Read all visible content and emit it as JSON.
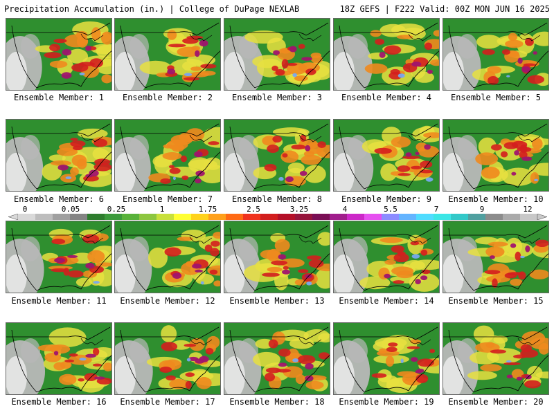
{
  "header": {
    "title": "Precipitation Accumulation (in.) | College of DuPage NEXLAB",
    "run_info": "18Z GEFS | F222 Valid: 00Z MON JUN 16 2025"
  },
  "members": [
    {
      "label": "Ensemble Member: 1"
    },
    {
      "label": "Ensemble Member: 2"
    },
    {
      "label": "Ensemble Member: 3"
    },
    {
      "label": "Ensemble Member: 4"
    },
    {
      "label": "Ensemble Member: 5"
    },
    {
      "label": "Ensemble Member: 6"
    },
    {
      "label": "Ensemble Member: 7"
    },
    {
      "label": "Ensemble Member: 8"
    },
    {
      "label": "Ensemble Member: 9"
    },
    {
      "label": "Ensemble Member: 10"
    },
    {
      "label": "Ensemble Member: 11"
    },
    {
      "label": "Ensemble Member: 12"
    },
    {
      "label": "Ensemble Member: 13"
    },
    {
      "label": "Ensemble Member: 14"
    },
    {
      "label": "Ensemble Member: 15"
    },
    {
      "label": "Ensemble Member: 16"
    },
    {
      "label": "Ensemble Member: 17"
    },
    {
      "label": "Ensemble Member: 18"
    },
    {
      "label": "Ensemble Member: 19"
    },
    {
      "label": "Ensemble Member: 20"
    }
  ],
  "colorbar": {
    "ticks": [
      "0",
      "0.05",
      "0.25",
      "1",
      "1.75",
      "2.5",
      "3.25",
      "4",
      "5.5",
      "7",
      "9",
      "12"
    ],
    "colors": [
      "#d9d9d9",
      "#bdbdbd",
      "#a0a0a0",
      "#848484",
      "#2e7d2e",
      "#3c9a3c",
      "#58b23a",
      "#8cc63f",
      "#c8e03c",
      "#ffff33",
      "#ffd21a",
      "#ffa01a",
      "#ff6a14",
      "#f0321e",
      "#d21e1e",
      "#b40f28",
      "#96143c",
      "#7a0f55",
      "#a01e8c",
      "#cc28c8",
      "#e650f0",
      "#8c8cff",
      "#64b4ff",
      "#50dcff",
      "#3ce6e6",
      "#32c8c8",
      "#50a0a0",
      "#8c8c8c",
      "#aaaaaa",
      "#c8c8c8"
    ]
  },
  "map_colors": {
    "background_green": "#2f8f2f",
    "dry_gray": "#b8b8b8",
    "light_gray": "#e8e8e8",
    "yellow": "#e8e040",
    "orange": "#f08a1e",
    "red": "#d41e1e",
    "magenta": "#a0146e",
    "light_blue": "#78a8f0"
  }
}
